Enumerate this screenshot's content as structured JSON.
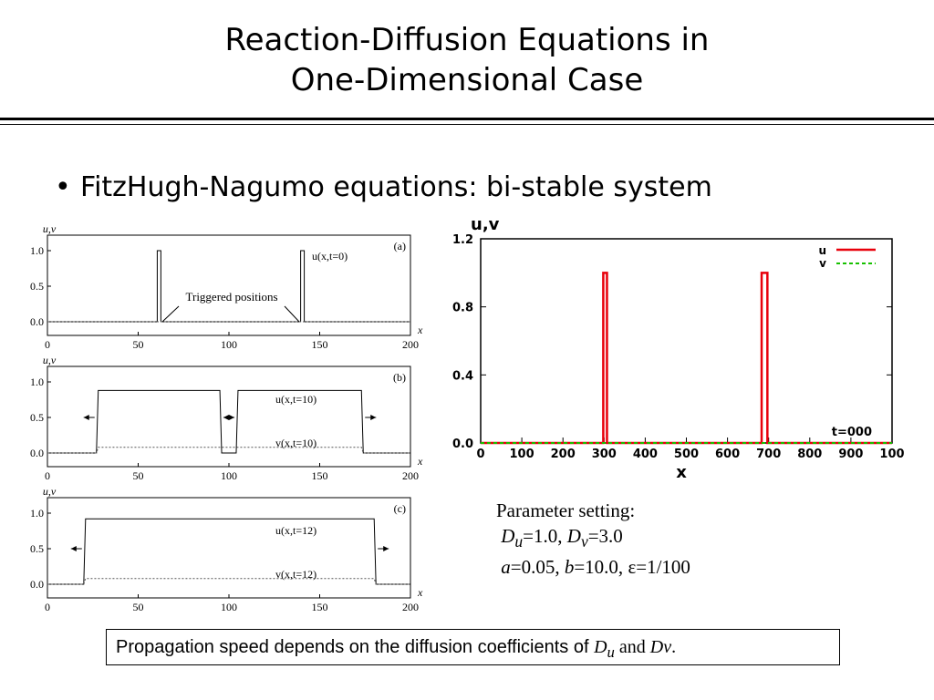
{
  "slide": {
    "title_line1": "Reaction-Diffusion Equations in",
    "title_line2": "One-Dimensional Case",
    "bullet": "FitzHugh-Nagumo equations: bi-stable system",
    "params": {
      "heading": "Parameter setting:",
      "Du_sym": "D",
      "Du_sub": "u",
      "Du_val": "=1.0, ",
      "Dv_sym": "D",
      "Dv_sub": "v",
      "Dv_val": "=3.0",
      "a_sym": "a",
      "a_val": "=0.05, ",
      "b_sym": "b",
      "b_val": "=10.0, ",
      "eps": "ε=1/100"
    },
    "note": {
      "text": "Propagation speed depends on the diffusion coefficients of ",
      "Du_sym": "D",
      "Du_sub": "u",
      "and": " and ",
      "Dv": "Dv",
      "end": "."
    }
  },
  "chart_data": [
    {
      "type": "line",
      "panel_label": "(a)",
      "ylabel": "u,v",
      "xlabel": "x",
      "xlim": [
        0,
        200
      ],
      "ylim": [
        0,
        1.0
      ],
      "xticks": [
        "0",
        "50",
        "100",
        "150",
        "200"
      ],
      "yticks": [
        "0.0",
        "0.5",
        "1.0"
      ],
      "series": [
        {
          "name": "u(x,t=0)",
          "x": [
            0,
            60.5,
            60.5,
            62.5,
            62.5,
            139.5,
            139.5,
            141.5,
            141.5,
            200
          ],
          "y": [
            0,
            0,
            1,
            1,
            0,
            0,
            1,
            1,
            0,
            0
          ]
        },
        {
          "name": "",
          "x": [
            0,
            200
          ],
          "y": [
            0,
            0
          ]
        }
      ],
      "annotations": [
        "u(x,t=0)",
        "Triggered positions"
      ]
    },
    {
      "type": "line",
      "panel_label": "(b)",
      "ylabel": "u,v",
      "xlabel": "x",
      "xlim": [
        0,
        200
      ],
      "ylim": [
        0,
        1.0
      ],
      "xticks": [
        "0",
        "50",
        "100",
        "150",
        "200"
      ],
      "yticks": [
        "0.0",
        "0.5",
        "1.0"
      ],
      "series": [
        {
          "name": "u(x,t=10)",
          "x": [
            0,
            27,
            28,
            95,
            96,
            104,
            105,
            173,
            174,
            200
          ],
          "y": [
            0,
            0,
            0.88,
            0.88,
            0,
            0,
            0.88,
            0.88,
            0,
            0
          ]
        },
        {
          "name": "v(x,t=10)",
          "x": [
            0,
            27,
            28,
            173,
            174,
            200
          ],
          "y": [
            0,
            0,
            0.08,
            0.08,
            0,
            0
          ]
        }
      ],
      "annotations": [
        "u(x,t=10)",
        "v(x,t=10)"
      ]
    },
    {
      "type": "line",
      "panel_label": "(c)",
      "ylabel": "u,v",
      "xlabel": "x",
      "xlim": [
        0,
        200
      ],
      "ylim": [
        0,
        1.0
      ],
      "xticks": [
        "0",
        "50",
        "100",
        "150",
        "200"
      ],
      "yticks": [
        "0.0",
        "0.5",
        "1.0"
      ],
      "series": [
        {
          "name": "u(x,t=12)",
          "x": [
            0,
            20,
            21,
            180,
            181,
            200
          ],
          "y": [
            0,
            0,
            0.92,
            0.92,
            0,
            0
          ]
        },
        {
          "name": "v(x,t=12)",
          "x": [
            0,
            20,
            21,
            180,
            181,
            200
          ],
          "y": [
            0,
            0,
            0.08,
            0.08,
            0,
            0
          ]
        }
      ],
      "annotations": [
        "u(x,t=12)",
        "v(x,t=12)"
      ]
    },
    {
      "type": "line",
      "ylabel": "u,v",
      "xlabel": "x",
      "xlim": [
        0,
        1000
      ],
      "ylim": [
        0,
        1.2
      ],
      "xticks": [
        "0",
        "100",
        "200",
        "300",
        "400",
        "500",
        "600",
        "700",
        "800",
        "900",
        "100"
      ],
      "yticks": [
        "0.0",
        "0.4",
        "0.8",
        "1.2"
      ],
      "time_label": "t=000",
      "legend_position": "top-right",
      "series": [
        {
          "name": "u",
          "color": "#e8000b",
          "x": [
            0,
            298,
            298,
            307,
            307,
            683,
            683,
            697,
            697,
            1000
          ],
          "y": [
            0,
            0,
            1.0,
            1.0,
            0,
            0,
            1.0,
            1.0,
            0,
            0
          ]
        },
        {
          "name": "v",
          "color": "#17c000",
          "x": [
            0,
            1000
          ],
          "y": [
            0,
            0
          ]
        }
      ]
    }
  ]
}
